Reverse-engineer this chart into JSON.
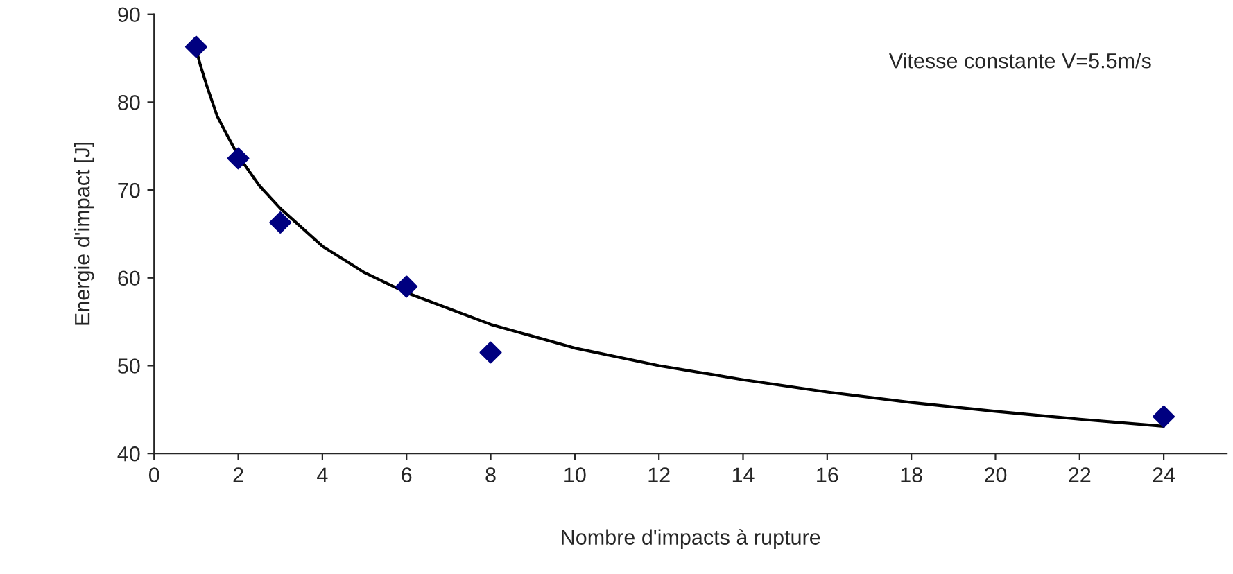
{
  "chart_data": {
    "type": "scatter",
    "xlabel": "Nombre d'impacts à rupture",
    "ylabel": "Energie d'impact [J]",
    "annotations": [
      "Vitesse constante V=5.5m/s"
    ],
    "series": [
      {
        "color": "#000080",
        "marker": "diamond",
        "x": [
          1,
          2,
          3,
          6,
          8,
          24
        ],
        "values": [
          86.3,
          73.6,
          66.3,
          59.0,
          51.5,
          44.2
        ]
      },
      {
        "type": "line",
        "color": "#000000",
        "marker": "none",
        "x": [
          1,
          1.1,
          1.25,
          1.5,
          1.75,
          2,
          2.5,
          3,
          4,
          5,
          6,
          8,
          10,
          12,
          14,
          16,
          18,
          20,
          22,
          24
        ],
        "values": [
          86.0,
          84.2,
          81.9,
          78.4,
          76.1,
          73.9,
          70.5,
          67.9,
          63.6,
          60.6,
          58.3,
          54.7,
          52.0,
          50.0,
          48.4,
          47.0,
          45.8,
          44.8,
          43.9,
          43.1
        ]
      }
    ],
    "xlim": [
      0,
      25.5
    ],
    "xticks": [
      0,
      2,
      4,
      6,
      8,
      10,
      12,
      14,
      16,
      18,
      20,
      22,
      24
    ],
    "ylim": [
      40,
      90
    ],
    "yticks": [
      40,
      50,
      60,
      70,
      80,
      90
    ],
    "grid": false,
    "legend": false
  }
}
